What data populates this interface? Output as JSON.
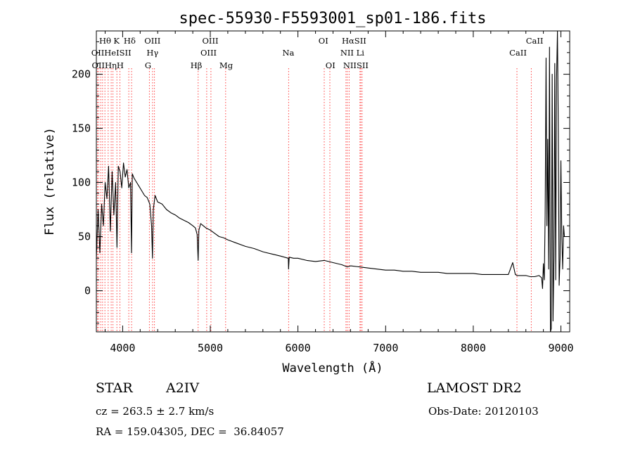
{
  "chart_data": {
    "type": "line",
    "title": "spec-55930-F5593001_sp01-186.fits",
    "xlabel": "Wavelength (Å)",
    "ylabel": "Flux (relative)",
    "xlim": [
      3700,
      9100
    ],
    "ylim": [
      -38,
      240
    ],
    "xticks": [
      4000,
      5000,
      6000,
      7000,
      8000,
      9000
    ],
    "yticks": [
      0,
      50,
      100,
      150,
      200
    ],
    "grid": false,
    "series": [
      {
        "values_x": [
          3700,
          3720,
          3740,
          3760,
          3780,
          3800,
          3820,
          3840,
          3860,
          3880,
          3900,
          3920,
          3935,
          3950,
          3970,
          3990,
          4010,
          4030,
          4050,
          4070,
          4090,
          4101,
          4110,
          4130,
          4160,
          4190,
          4220,
          4250,
          4280,
          4310,
          4330,
          4340,
          4350,
          4370,
          4400,
          4450,
          4500,
          4550,
          4600,
          4650,
          4700,
          4750,
          4800,
          4830,
          4850,
          4861,
          4870,
          4890,
          4920,
          4950,
          5000,
          5050,
          5100,
          5150,
          5200,
          5300,
          5400,
          5500,
          5600,
          5700,
          5800,
          5890,
          5893,
          5900,
          5950,
          6000,
          6100,
          6200,
          6300,
          6400,
          6500,
          6563,
          6600,
          6700,
          6800,
          6900,
          7000,
          7100,
          7200,
          7300,
          7400,
          7500,
          7600,
          7700,
          7800,
          7900,
          8000,
          8100,
          8200,
          8300,
          8400,
          8450,
          8480,
          8500,
          8550,
          8600,
          8650,
          8700,
          8750,
          8780,
          8790,
          8800,
          8810,
          8820,
          8830,
          8840,
          8850,
          8860,
          8870,
          8880,
          8890,
          8900,
          8910,
          8920,
          8930,
          8940,
          8950,
          8960,
          8970,
          8980,
          8990,
          9000,
          9010,
          9020,
          9030,
          9040
        ],
        "values_y": [
          30,
          75,
          35,
          80,
          60,
          100,
          85,
          115,
          55,
          110,
          70,
          100,
          40,
          115,
          110,
          95,
          118,
          105,
          112,
          95,
          100,
          35,
          108,
          104,
          100,
          96,
          92,
          88,
          86,
          80,
          60,
          30,
          75,
          88,
          82,
          80,
          75,
          72,
          70,
          67,
          65,
          63,
          60,
          58,
          52,
          28,
          56,
          62,
          60,
          58,
          56,
          53,
          50,
          49,
          47,
          44,
          41,
          39,
          36,
          34,
          32,
          30,
          20,
          31,
          30,
          30,
          28,
          27,
          28,
          26,
          24,
          22,
          23,
          22,
          21,
          20,
          19,
          19,
          18,
          18,
          17,
          17,
          17,
          16,
          16,
          16,
          16,
          15,
          15,
          15,
          15,
          26,
          15,
          14,
          14,
          14,
          13,
          13,
          14,
          12,
          2,
          25,
          10,
          70,
          215,
          60,
          140,
          20,
          225,
          -40,
          -35,
          200,
          -28,
          30,
          210,
          10,
          195,
          240,
          150,
          5,
          30,
          120,
          50,
          20,
          60,
          50
        ],
        "color": "#000000"
      }
    ],
    "line_markers": [
      {
        "wave": 3712,
        "label": "OII"
      },
      {
        "wave": 3726,
        "label": "OII"
      },
      {
        "wave": 3750,
        "label": "OII"
      },
      {
        "wave": 3771,
        "label": "OII"
      },
      {
        "wave": 3798,
        "label": "Hη"
      },
      {
        "wave": 3835,
        "label": "Hθ"
      },
      {
        "wave": 3869,
        "label": "HeI"
      },
      {
        "wave": 3889,
        "label": "HeI"
      },
      {
        "wave": 3934,
        "label": "K"
      },
      {
        "wave": 3969,
        "label": "H"
      },
      {
        "wave": 4070,
        "label": "SII"
      },
      {
        "wave": 4102,
        "label": "Hδ"
      },
      {
        "wave": 4305,
        "label": "G"
      },
      {
        "wave": 4341,
        "label": "Hγ"
      },
      {
        "wave": 4363,
        "label": "OIII"
      },
      {
        "wave": 4861,
        "label": "Hβ"
      },
      {
        "wave": 4959,
        "label": "OIII"
      },
      {
        "wave": 5007,
        "label": "OIII"
      },
      {
        "wave": 5175,
        "label": "Mg"
      },
      {
        "wave": 5894,
        "label": "Na"
      },
      {
        "wave": 6300,
        "label": "OI"
      },
      {
        "wave": 6364,
        "label": "OI"
      },
      {
        "wave": 6548,
        "label": "NII"
      },
      {
        "wave": 6563,
        "label": "Hα"
      },
      {
        "wave": 6584,
        "label": "NII"
      },
      {
        "wave": 6707,
        "label": "Li"
      },
      {
        "wave": 6717,
        "label": "SII"
      },
      {
        "wave": 6731,
        "label": "SII"
      },
      {
        "wave": 8498,
        "label": "CaII"
      },
      {
        "wave": 8662,
        "label": "CaII"
      }
    ],
    "marker_labels": [
      {
        "text": "Hθ",
        "wave": 3800,
        "row": 1
      },
      {
        "text": "K",
        "wave": 3930,
        "row": 1
      },
      {
        "text": "Hδ",
        "wave": 4080,
        "row": 1
      },
      {
        "text": "OIII",
        "wave": 4340,
        "row": 1
      },
      {
        "text": "OIII",
        "wave": 5000,
        "row": 1
      },
      {
        "text": "OI",
        "wave": 6290,
        "row": 1
      },
      {
        "text": "HαSII",
        "wave": 6640,
        "row": 1
      },
      {
        "text": "CaII",
        "wave": 8700,
        "row": 1
      },
      {
        "text": "OIIHeISII",
        "wave": 3870,
        "row": 2
      },
      {
        "text": "Hγ",
        "wave": 4340,
        "row": 2
      },
      {
        "text": "OIII",
        "wave": 4980,
        "row": 2
      },
      {
        "text": "Na",
        "wave": 5890,
        "row": 2
      },
      {
        "text": "NII Li",
        "wave": 6620,
        "row": 2
      },
      {
        "text": "CaII",
        "wave": 8510,
        "row": 2
      },
      {
        "text": "OIIHηH",
        "wave": 3830,
        "row": 3
      },
      {
        "text": "G",
        "wave": 4290,
        "row": 3
      },
      {
        "text": "Hβ",
        "wave": 4840,
        "row": 3
      },
      {
        "text": "Mg",
        "wave": 5180,
        "row": 3
      },
      {
        "text": "OI",
        "wave": 6370,
        "row": 3
      },
      {
        "text": "NIISII",
        "wave": 6660,
        "row": 3
      }
    ],
    "marker_color": "#ff4040"
  },
  "info": {
    "object_type": "STAR",
    "subclass": "A2IV",
    "survey": "LAMOST DR2",
    "redshift_line": "cz = 263.5 ± 2.7 km/s",
    "obs_date_line": "Obs-Date: 20120103",
    "coords_line": "RA = 159.04305, DEC =  36.84057"
  }
}
